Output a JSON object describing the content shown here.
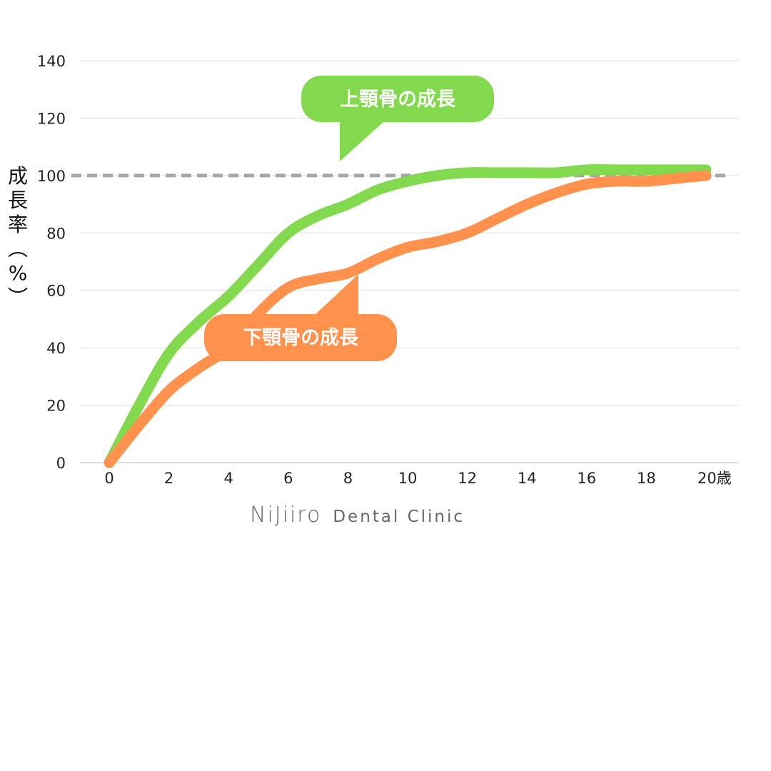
{
  "chart_data": {
    "type": "line",
    "x": [
      0,
      1,
      2,
      3,
      4,
      5,
      6,
      7,
      8,
      9,
      10,
      11,
      12,
      13,
      14,
      15,
      16,
      17,
      18,
      19,
      20
    ],
    "series": [
      {
        "name": "上顎骨の成長",
        "color": "#82d94e",
        "values": [
          0,
          20,
          38,
          49,
          58,
          69,
          80,
          86,
          90,
          95,
          98,
          100,
          101,
          101,
          101,
          101,
          102,
          102,
          102,
          102,
          102
        ]
      },
      {
        "name": "下顎骨の成長",
        "color": "#ff914d",
        "values": [
          0,
          13,
          25,
          33,
          40,
          52,
          61,
          64,
          66,
          71,
          75,
          77,
          80,
          85,
          90,
          94,
          97,
          98,
          98,
          99,
          100
        ]
      }
    ],
    "reference_line": {
      "value": 100,
      "color": "#a6a6a6",
      "style": "dashed"
    },
    "ylim": [
      0,
      140
    ],
    "xlim": [
      -1,
      21
    ],
    "yticks": [
      "0",
      "20",
      "40",
      "60",
      "80",
      "100",
      "120",
      "140"
    ],
    "xticks": [
      "0",
      "2",
      "4",
      "6",
      "8",
      "10",
      "12",
      "14",
      "16",
      "18",
      "20歳"
    ],
    "ylabel": "成長率（%）",
    "grid": true,
    "annotations": [
      {
        "text": "上顎骨の成長",
        "color": "#82d94e"
      },
      {
        "text": "下顎骨の成長",
        "color": "#ff914d"
      }
    ]
  },
  "logo": {
    "brand": "NiJiiro",
    "subtitle": "Dental Clinic"
  }
}
